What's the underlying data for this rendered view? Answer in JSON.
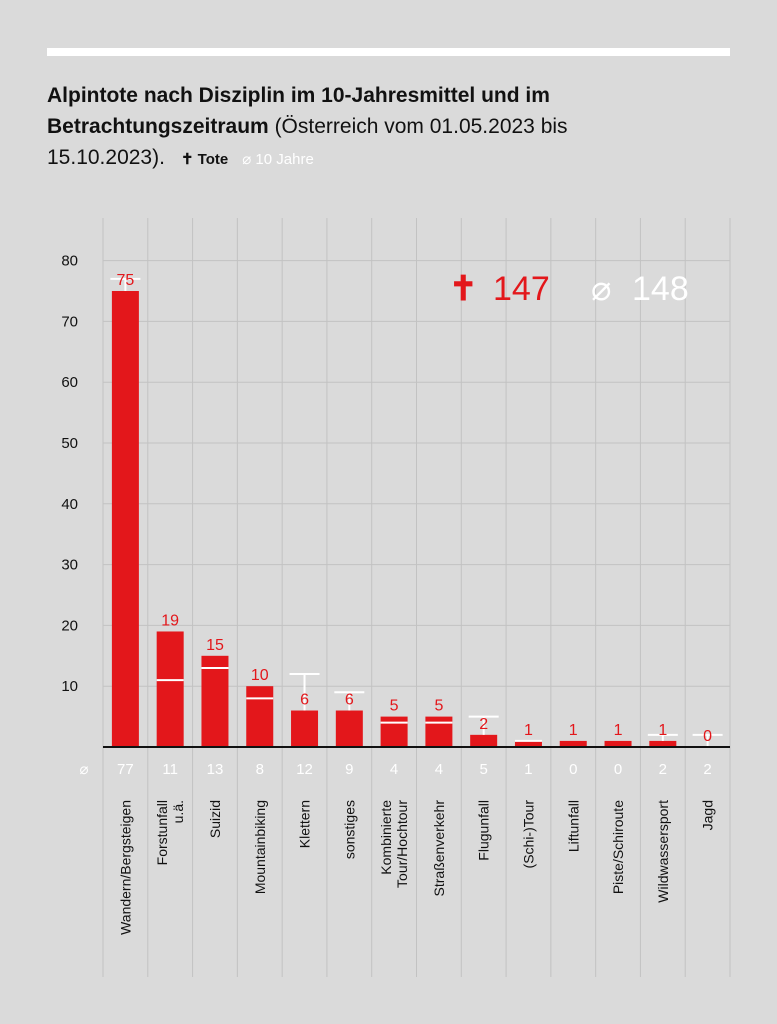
{
  "header": {
    "title_bold": "Alpintote nach Disziplin im 10-Jahresmittel und im Betrachtungszeitraum",
    "title_regular": "(Österreich vom 01.05.2023 bis 15.10.2023).",
    "legend_tote": "✝ Tote",
    "legend_avg": "⌀ 10 Jahre"
  },
  "totals": {
    "tote_symbol": "✝",
    "tote_value": "147",
    "avg_symbol": "⌀",
    "avg_value": "148"
  },
  "avg_row_symbol": "⌀",
  "colors": {
    "background": "#dadada",
    "bar": "#e3171b",
    "avg": "#ffffff",
    "text": "#111111"
  },
  "chart_data": {
    "type": "bar",
    "categories": [
      "Wandern/Bergsteigen",
      "Forstunfall u.ä.",
      "Suizid",
      "Mountainbiking",
      "Klettern",
      "sonstiges",
      "Kombinierte Tour/Hochtour",
      "Straßenverkehr",
      "Flugunfall",
      "(Schi-)Tour",
      "Liftunfall",
      "Piste/Schiroute",
      "Wildwassersport",
      "Jagd"
    ],
    "series": [
      {
        "name": "Tote",
        "values": [
          75,
          19,
          15,
          10,
          6,
          6,
          5,
          5,
          2,
          1,
          1,
          1,
          1,
          0
        ]
      },
      {
        "name": "10 Jahre",
        "values": [
          77,
          11,
          13,
          8,
          12,
          9,
          4,
          4,
          5,
          1,
          0,
          0,
          2,
          2
        ]
      }
    ],
    "yticks": [
      10,
      20,
      30,
      40,
      50,
      60,
      70,
      80
    ],
    "ylim": [
      0,
      85
    ],
    "grid": true
  }
}
